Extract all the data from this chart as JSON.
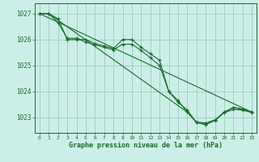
{
  "background_color": "#cceee8",
  "grid_color": "#99ccbb",
  "line_color": "#1a6b2a",
  "marker_color": "#1a6b2a",
  "xlabel": "Graphe pression niveau de la mer (hPa)",
  "xlabel_color": "#1a6b2a",
  "tick_color": "#1a6b2a",
  "ylim": [
    1022.4,
    1027.4
  ],
  "xlim": [
    -0.5,
    23.5
  ],
  "yticks": [
    1023,
    1024,
    1025,
    1026,
    1027
  ],
  "xticks": [
    0,
    1,
    2,
    3,
    4,
    5,
    6,
    7,
    8,
    9,
    10,
    11,
    12,
    13,
    14,
    15,
    16,
    17,
    18,
    19,
    20,
    21,
    22,
    23
  ],
  "lines": [
    {
      "x": [
        0,
        1,
        2,
        3,
        4,
        5,
        6,
        7,
        8,
        9,
        10,
        11,
        12,
        13,
        14,
        15,
        16,
        17,
        18,
        19,
        20,
        21,
        22,
        23
      ],
      "y": [
        1027.0,
        1027.0,
        1026.8,
        1026.0,
        1026.0,
        1026.0,
        1025.85,
        1025.75,
        1025.65,
        1026.0,
        1026.0,
        1025.7,
        1025.45,
        1025.2,
        1024.0,
        1023.65,
        1023.2,
        1022.82,
        1022.78,
        1022.9,
        1023.2,
        1023.38,
        1023.32,
        1023.2
      ],
      "has_markers": true
    },
    {
      "x": [
        0,
        1,
        2,
        3,
        4,
        5,
        6,
        7,
        8,
        9,
        10,
        11,
        12,
        13,
        14,
        15,
        16,
        17,
        18,
        19,
        20,
        21,
        22,
        23
      ],
      "y": [
        1027.0,
        1027.0,
        1026.65,
        1026.05,
        1026.05,
        1025.9,
        1025.8,
        1025.7,
        1025.6,
        1025.82,
        1025.82,
        1025.58,
        1025.3,
        1025.0,
        1024.0,
        1023.58,
        1023.28,
        1022.8,
        1022.72,
        1022.88,
        1023.18,
        1023.3,
        1023.28,
        1023.18
      ],
      "has_markers": true
    },
    {
      "x": [
        0,
        23
      ],
      "y": [
        1027.0,
        1023.2
      ],
      "has_markers": false
    },
    {
      "x": [
        0,
        1,
        16,
        17,
        18,
        19,
        20,
        21,
        22,
        23
      ],
      "y": [
        1027.0,
        1027.0,
        1023.2,
        1022.8,
        1022.72,
        1022.88,
        1023.18,
        1023.38,
        1023.3,
        1023.2
      ],
      "has_markers": false
    }
  ]
}
